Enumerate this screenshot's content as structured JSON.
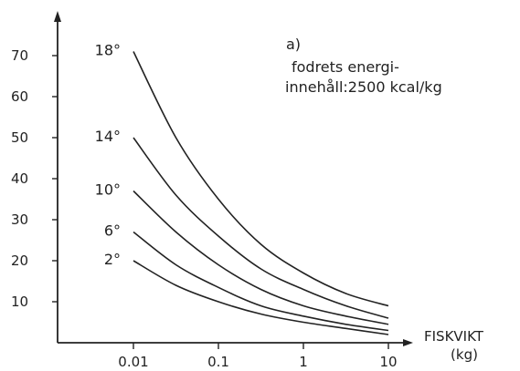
{
  "chart_data": {
    "type": "line",
    "title": "",
    "annotation": {
      "tag": "a)",
      "line1": "fodrets energi-",
      "line2": "innehåll:2500 kcal/kg"
    },
    "xlabel": "FISKVIKT",
    "xlabel_unit": "(kg)",
    "ylabel": "",
    "x_scale": "log",
    "xlim": [
      0.0018,
      30
    ],
    "ylim": [
      0,
      80
    ],
    "x_ticks": [
      0.01,
      0.1,
      1,
      10
    ],
    "x_tick_labels": [
      "0.01",
      "0.1",
      "1",
      "10"
    ],
    "y_ticks": [
      10,
      20,
      30,
      40,
      50,
      60,
      70
    ],
    "y_tick_labels": [
      "10",
      "20",
      "30",
      "40",
      "50",
      "60",
      "70"
    ],
    "x": [
      0.01,
      0.0316,
      0.1,
      0.316,
      1,
      3.16,
      10
    ],
    "series": [
      {
        "name": "18°",
        "values": [
          71,
          50,
          35,
          24,
          17,
          12,
          9
        ]
      },
      {
        "name": "14°",
        "values": [
          50,
          36,
          26,
          18,
          13,
          9,
          6
        ]
      },
      {
        "name": "10°",
        "values": [
          37,
          27,
          19,
          13,
          9,
          6.5,
          4.5
        ]
      },
      {
        "name": "6°",
        "values": [
          27,
          19,
          13.5,
          9,
          6.5,
          4.5,
          3
        ]
      },
      {
        "name": "2°",
        "values": [
          20,
          14,
          10,
          7,
          5,
          3.5,
          2
        ]
      }
    ]
  }
}
